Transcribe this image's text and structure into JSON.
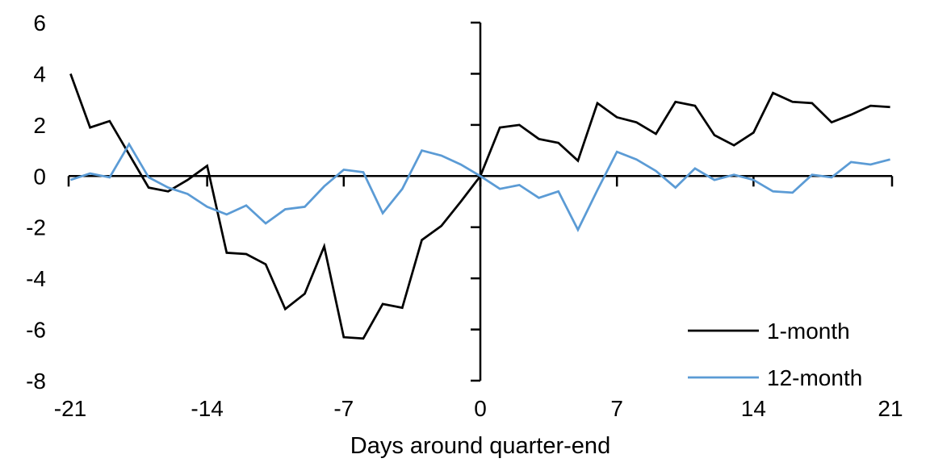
{
  "chart_data": {
    "type": "line",
    "title": "",
    "xlabel": "Days around quarter-end",
    "ylabel": "",
    "x": [
      -21,
      -20,
      -19,
      -18,
      -17,
      -16,
      -15,
      -14,
      -13,
      -12,
      -11,
      -10,
      -9,
      -8,
      -7,
      -6,
      -5,
      -4,
      -3,
      -2,
      -1,
      0,
      1,
      2,
      3,
      4,
      5,
      6,
      7,
      8,
      9,
      10,
      11,
      12,
      13,
      14,
      15,
      16,
      17,
      18,
      19,
      20,
      21
    ],
    "series": [
      {
        "name": "1-month",
        "color": "#000000",
        "values": [
          4.0,
          1.9,
          2.15,
          0.85,
          -0.45,
          -0.6,
          -0.15,
          0.4,
          -3.0,
          -3.05,
          -3.45,
          -5.2,
          -4.6,
          -2.75,
          -6.3,
          -6.35,
          -5.0,
          -5.15,
          -2.5,
          -1.95,
          -1.0,
          0.0,
          1.9,
          2.0,
          1.45,
          1.3,
          0.6,
          2.85,
          2.3,
          2.1,
          1.65,
          2.9,
          2.75,
          1.6,
          1.2,
          1.7,
          3.25,
          2.9,
          2.85,
          2.1,
          2.4,
          2.75,
          2.7
        ]
      },
      {
        "name": "12-month",
        "color": "#5B9BD5",
        "values": [
          -0.15,
          0.1,
          -0.05,
          1.25,
          -0.05,
          -0.45,
          -0.7,
          -1.2,
          -1.5,
          -1.15,
          -1.85,
          -1.3,
          -1.2,
          -0.4,
          0.25,
          0.15,
          -1.45,
          -0.5,
          1.0,
          0.8,
          0.45,
          0.0,
          -0.5,
          -0.35,
          -0.85,
          -0.6,
          -2.1,
          -0.55,
          0.95,
          0.65,
          0.2,
          -0.45,
          0.3,
          -0.15,
          0.05,
          -0.15,
          -0.6,
          -0.65,
          0.05,
          -0.05,
          0.55,
          0.45,
          0.65
        ]
      }
    ],
    "xlim": [
      -21,
      21
    ],
    "ylim": [
      -8,
      6
    ],
    "x_ticks": [
      -21,
      -14,
      -7,
      0,
      7,
      14,
      21
    ],
    "y_ticks": [
      6,
      4,
      2,
      0,
      -2,
      -4,
      -6,
      -8
    ],
    "grid": false,
    "legend_position": "inside-bottom-right",
    "axis_color": "#000000"
  }
}
